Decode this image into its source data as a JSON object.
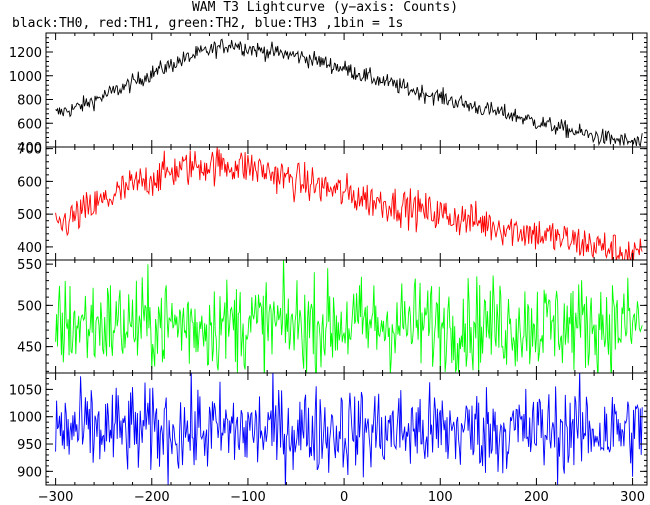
{
  "header": {
    "title": "WAM T3 Lightcurve (y−axis: Counts)",
    "subtitle": "black:TH0, red:TH1, green:TH2, blue:TH3 ,1bin = 1s"
  },
  "chart_data": [
    {
      "type": "line",
      "series": [
        {
          "name": "TH0",
          "color": "#000000",
          "x": [
            -300,
            -275,
            -250,
            -225,
            -200,
            -175,
            -150,
            -125,
            -115,
            -100,
            -75,
            -50,
            -25,
            0,
            25,
            50,
            75,
            100,
            125,
            150,
            175,
            200,
            225,
            250,
            275,
            300,
            310
          ],
          "values": [
            680,
            740,
            830,
            920,
            1020,
            1110,
            1190,
            1250,
            1270,
            1230,
            1200,
            1170,
            1120,
            1060,
            990,
            930,
            870,
            820,
            760,
            710,
            670,
            610,
            560,
            510,
            470,
            440,
            430
          ]
        }
      ],
      "xlim": [
        -310,
        315
      ],
      "ylim": [
        400,
        1360
      ],
      "yticks": [
        400,
        600,
        800,
        1000,
        1200
      ],
      "noise": 35
    },
    {
      "type": "line",
      "series": [
        {
          "name": "TH1",
          "color": "#ff0000",
          "x": [
            -300,
            -275,
            -250,
            -225,
            -200,
            -175,
            -150,
            -125,
            -100,
            -75,
            -50,
            -25,
            0,
            25,
            50,
            75,
            100,
            125,
            150,
            175,
            200,
            225,
            250,
            275,
            300,
            310
          ],
          "values": [
            460,
            500,
            540,
            580,
            610,
            635,
            650,
            650,
            645,
            625,
            600,
            585,
            565,
            545,
            530,
            515,
            500,
            485,
            470,
            455,
            440,
            425,
            410,
            395,
            375,
            370
          ]
        }
      ],
      "xlim": [
        -310,
        315
      ],
      "ylim": [
        360,
        705
      ],
      "yticks": [
        400,
        500,
        600,
        700
      ],
      "noise": 28
    },
    {
      "type": "line",
      "series": [
        {
          "name": "TH2",
          "color": "#00ff00",
          "x": [
            -300,
            310
          ],
          "values": [
            477,
            477
          ]
        }
      ],
      "xlim": [
        -310,
        315
      ],
      "ylim": [
        418,
        555
      ],
      "yticks": [
        450,
        500,
        550
      ],
      "noise": 28
    },
    {
      "type": "line",
      "series": [
        {
          "name": "TH3",
          "color": "#0000ff",
          "x": [
            -300,
            310
          ],
          "values": [
            975,
            975
          ]
        }
      ],
      "xlim": [
        -310,
        315
      ],
      "ylim": [
        875,
        1080
      ],
      "yticks": [
        900,
        950,
        1000,
        1050
      ],
      "xticks": [
        -300,
        -200,
        -100,
        0,
        100,
        200,
        300
      ],
      "noise": 40
    }
  ]
}
